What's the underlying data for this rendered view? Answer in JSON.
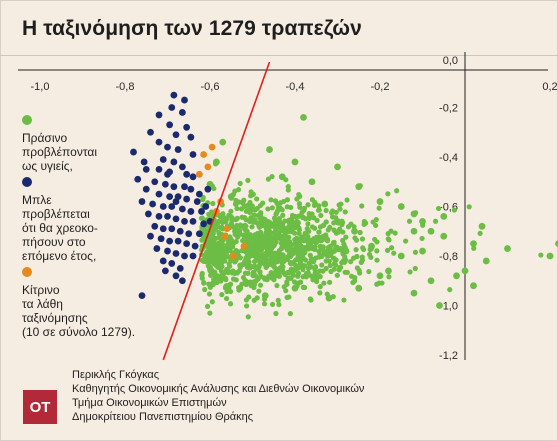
{
  "title": "Η ταξινόμηση των 1279 τραπεζών",
  "legend": [
    {
      "color": "#6cbd45",
      "label": "Πράσινο\nπροβλέπονται\nως υγιείς,"
    },
    {
      "color": "#1b2a6e",
      "label": "Μπλε\nπροβλέπεται\nότι θα χρεοκο-\nπήσουν στο\nεπόμενο έτος,"
    },
    {
      "color": "#e48b1c",
      "label": "Κίτρινο\nτα λάθη\nταξινόμησης\n(10 σε σύνολο 1279)."
    }
  ],
  "credit": {
    "logo": "OT",
    "lines": [
      "Περικλής Γκόγκας",
      "Καθηγητής Οικονομικής Ανάλυσης και Διεθνών Οικονομικών",
      "Τμήμα Οικονομικών Επιστημών",
      "Δημοκρίτειου Πανεπιστημίου Θράκης"
    ]
  },
  "chart_data": {
    "type": "scatter",
    "x_ticks": [
      "-1,0",
      "-0,8",
      "-0,6",
      "-0,4",
      "-0,2",
      "0,2"
    ],
    "y_ticks": [
      "0,0",
      "-0,2",
      "-0,4",
      "-0,6",
      "-0,8",
      "-1,0",
      "-1,2"
    ],
    "xlim": [
      -1.0,
      0.25
    ],
    "ylim": [
      -1.25,
      0.0
    ],
    "decision_boundary": {
      "color": "#e0201b",
      "from": [
        -0.71,
        -1.22
      ],
      "to": [
        -0.46,
        0.0
      ]
    },
    "series": [
      {
        "color": "#1b2a6e",
        "points": [
          [
            -0.685,
            -0.15
          ],
          [
            -0.66,
            -0.17
          ],
          [
            -0.69,
            -0.2
          ],
          [
            -0.72,
            -0.23
          ],
          [
            -0.665,
            -0.22
          ],
          [
            -0.695,
            -0.27
          ],
          [
            -0.655,
            -0.28
          ],
          [
            -0.74,
            -0.3
          ],
          [
            -0.68,
            -0.31
          ],
          [
            -0.645,
            -0.32
          ],
          [
            -0.72,
            -0.34
          ],
          [
            -0.7,
            -0.36
          ],
          [
            -0.675,
            -0.37
          ],
          [
            -0.78,
            -0.38
          ],
          [
            -0.64,
            -0.39
          ],
          [
            -0.71,
            -0.41
          ],
          [
            -0.685,
            -0.42
          ],
          [
            -0.665,
            -0.44
          ],
          [
            -0.75,
            -0.45
          ],
          [
            -0.72,
            -0.45
          ],
          [
            -0.695,
            -0.46
          ],
          [
            -0.655,
            -0.47
          ],
          [
            -0.64,
            -0.48
          ],
          [
            -0.77,
            -0.49
          ],
          [
            -0.73,
            -0.5
          ],
          [
            -0.705,
            -0.51
          ],
          [
            -0.685,
            -0.52
          ],
          [
            -0.66,
            -0.52
          ],
          [
            -0.645,
            -0.53
          ],
          [
            -0.75,
            -0.53
          ],
          [
            -0.72,
            -0.55
          ],
          [
            -0.695,
            -0.56
          ],
          [
            -0.675,
            -0.56
          ],
          [
            -0.655,
            -0.57
          ],
          [
            -0.63,
            -0.58
          ],
          [
            -0.76,
            -0.58
          ],
          [
            -0.735,
            -0.59
          ],
          [
            -0.71,
            -0.6
          ],
          [
            -0.69,
            -0.6
          ],
          [
            -0.665,
            -0.61
          ],
          [
            -0.645,
            -0.62
          ],
          [
            -0.62,
            -0.62
          ],
          [
            -0.745,
            -0.63
          ],
          [
            -0.72,
            -0.64
          ],
          [
            -0.7,
            -0.64
          ],
          [
            -0.68,
            -0.65
          ],
          [
            -0.66,
            -0.66
          ],
          [
            -0.64,
            -0.66
          ],
          [
            -0.615,
            -0.67
          ],
          [
            -0.73,
            -0.68
          ],
          [
            -0.71,
            -0.69
          ],
          [
            -0.69,
            -0.69
          ],
          [
            -0.67,
            -0.7
          ],
          [
            -0.65,
            -0.71
          ],
          [
            -0.625,
            -0.71
          ],
          [
            -0.74,
            -0.72
          ],
          [
            -0.715,
            -0.73
          ],
          [
            -0.695,
            -0.74
          ],
          [
            -0.675,
            -0.74
          ],
          [
            -0.655,
            -0.75
          ],
          [
            -0.635,
            -0.76
          ],
          [
            -0.725,
            -0.77
          ],
          [
            -0.7,
            -0.78
          ],
          [
            -0.68,
            -0.79
          ],
          [
            -0.66,
            -0.8
          ],
          [
            -0.64,
            -0.8
          ],
          [
            -0.71,
            -0.82
          ],
          [
            -0.69,
            -0.83
          ],
          [
            -0.67,
            -0.85
          ],
          [
            -0.705,
            -0.86
          ],
          [
            -0.68,
            -0.88
          ],
          [
            -0.665,
            -0.9
          ],
          [
            -0.76,
            -0.96
          ],
          [
            -0.625,
            -0.55
          ],
          [
            -0.61,
            -0.6
          ],
          [
            -0.6,
            -0.66
          ],
          [
            -0.605,
            -0.53
          ],
          [
            -0.755,
            -0.42
          ],
          [
            -0.7,
            -0.47
          ],
          [
            -0.68,
            -0.58
          ]
        ]
      },
      {
        "color": "#e48b1c",
        "points": [
          [
            -0.615,
            -0.39
          ],
          [
            -0.605,
            -0.44
          ],
          [
            -0.625,
            -0.47
          ],
          [
            -0.595,
            -0.36
          ],
          [
            -0.52,
            -0.76
          ],
          [
            -0.56,
            -0.69
          ],
          [
            -0.575,
            -0.58
          ],
          [
            -0.545,
            -0.8
          ],
          [
            -0.585,
            -0.62
          ],
          [
            -0.565,
            -0.72
          ]
        ]
      },
      {
        "color": "#6cbd45",
        "points": [
          [
            -0.38,
            -0.24
          ],
          [
            -0.46,
            -0.37
          ],
          [
            -0.57,
            -0.34
          ],
          [
            -0.585,
            -0.42
          ],
          [
            -0.6,
            -0.51
          ],
          [
            -0.55,
            -0.56
          ],
          [
            -0.58,
            -0.77
          ],
          [
            -0.56,
            -0.86
          ],
          [
            -0.53,
            -0.93
          ],
          [
            -0.47,
            -0.96
          ],
          [
            -0.3,
            -0.44
          ],
          [
            -0.25,
            -0.52
          ],
          [
            -0.2,
            -0.58
          ],
          [
            -0.15,
            -0.6
          ],
          [
            -0.12,
            -0.63
          ],
          [
            -0.1,
            -0.66
          ],
          [
            -0.08,
            -0.7
          ],
          [
            -0.05,
            -0.72
          ],
          [
            0.02,
            -0.75
          ],
          [
            0.1,
            -0.77
          ],
          [
            0.2,
            -0.8
          ],
          [
            0.22,
            -0.75
          ],
          [
            -0.12,
            -0.95
          ],
          [
            -0.06,
            -1.0
          ],
          [
            0.02,
            -0.92
          ],
          [
            -0.02,
            -0.88
          ],
          [
            0.05,
            -0.82
          ],
          [
            -0.25,
            -0.93
          ],
          [
            -0.32,
            -0.97
          ],
          [
            0.04,
            -0.68
          ],
          [
            -0.05,
            -0.64
          ],
          [
            -0.18,
            -0.86
          ],
          [
            -0.28,
            -0.78
          ],
          [
            -0.2,
            -0.88
          ],
          [
            0.0,
            -0.86
          ],
          [
            -0.08,
            -0.9
          ],
          [
            -0.4,
            -0.93
          ],
          [
            -0.43,
            -0.48
          ],
          [
            -0.36,
            -0.5
          ],
          [
            -0.4,
            -0.42
          ],
          [
            -0.33,
            -0.59
          ],
          [
            -0.3,
            -0.66
          ],
          [
            -0.26,
            -0.7
          ],
          [
            -0.22,
            -0.76
          ],
          [
            -0.15,
            -0.8
          ],
          [
            -0.1,
            -0.78
          ],
          [
            -0.12,
            -0.7
          ]
        ]
      }
    ],
    "green_cloud": {
      "center": [
        -0.47,
        -0.76
      ],
      "spread": [
        0.11,
        0.13
      ],
      "count": 1150
    }
  }
}
